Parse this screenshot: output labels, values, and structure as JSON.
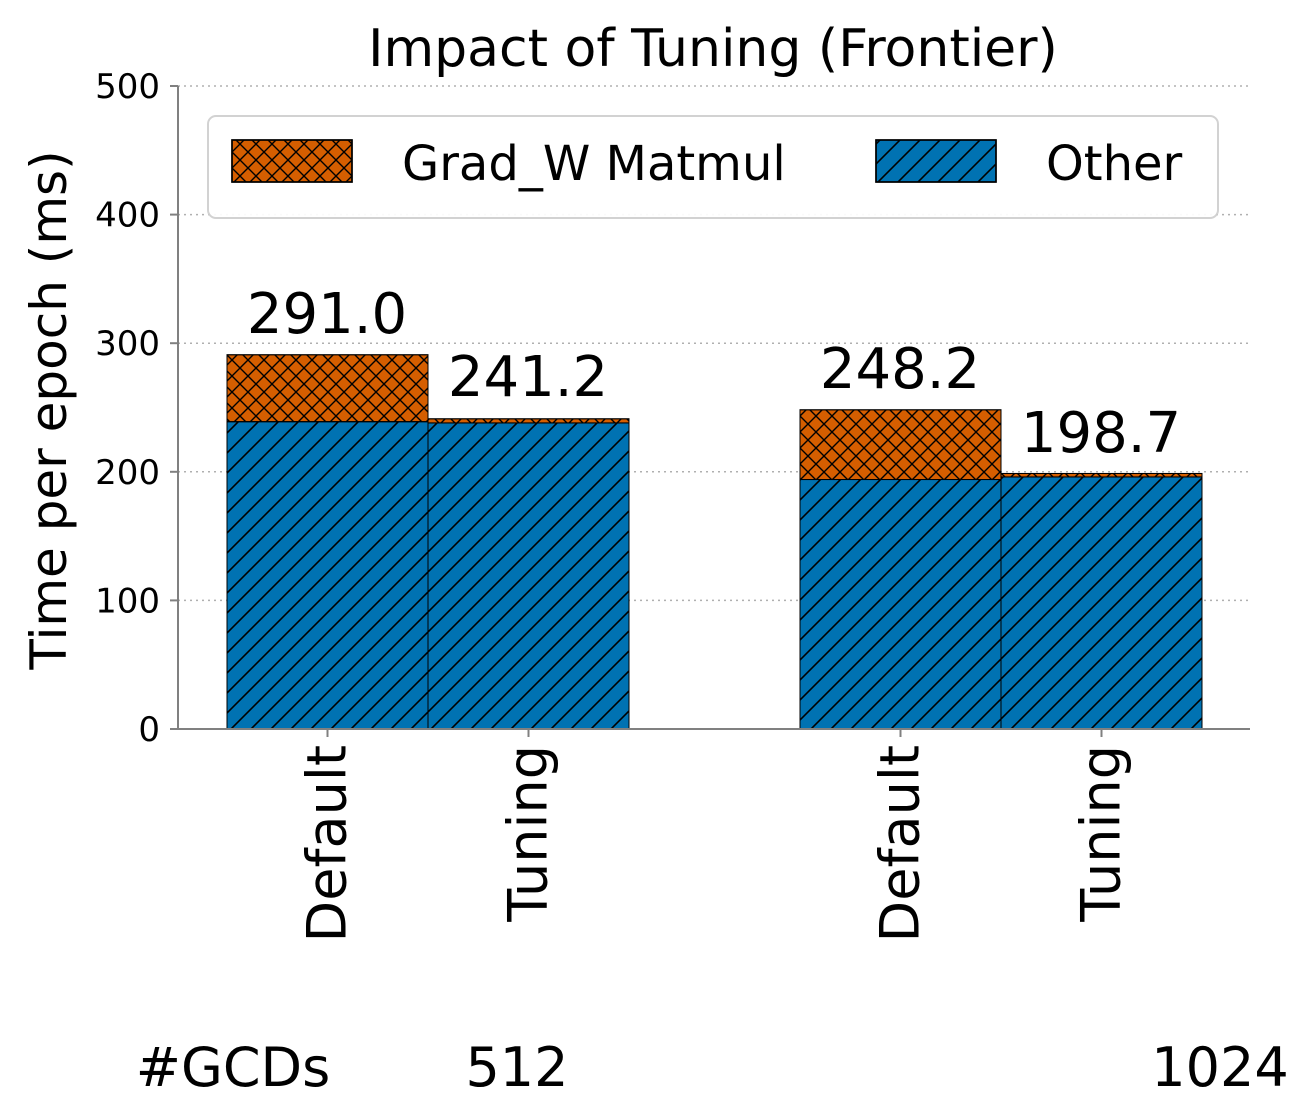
{
  "chart_data": {
    "type": "bar",
    "stacked": true,
    "title": "Impact of Tuning (Frontier)",
    "ylabel": "Time per epoch (ms)",
    "ylim": [
      0,
      500
    ],
    "yticks": [
      0,
      100,
      200,
      300,
      400,
      500
    ],
    "grid": true,
    "legend_position": "top",
    "categories": [
      "Default",
      "Tuning",
      "Default",
      "Tuning"
    ],
    "groups": [
      {
        "label": "512",
        "bars": [
          0,
          1
        ]
      },
      {
        "label": "1024",
        "bars": [
          2,
          3
        ]
      }
    ],
    "group_axis_label": "#GCDs",
    "series": [
      {
        "name": "Other",
        "hatch": "diagonal",
        "color": "#0072b2",
        "values": [
          239,
          238,
          194,
          196
        ]
      },
      {
        "name": "Grad_W Matmul",
        "hatch": "crosshatch",
        "color": "#d55e00",
        "values": [
          52.0,
          3.2,
          54.2,
          2.7
        ]
      }
    ],
    "totals": [
      "291.0",
      "241.2",
      "248.2",
      "198.7"
    ],
    "legend_order": [
      "Grad_W Matmul",
      "Other"
    ]
  }
}
